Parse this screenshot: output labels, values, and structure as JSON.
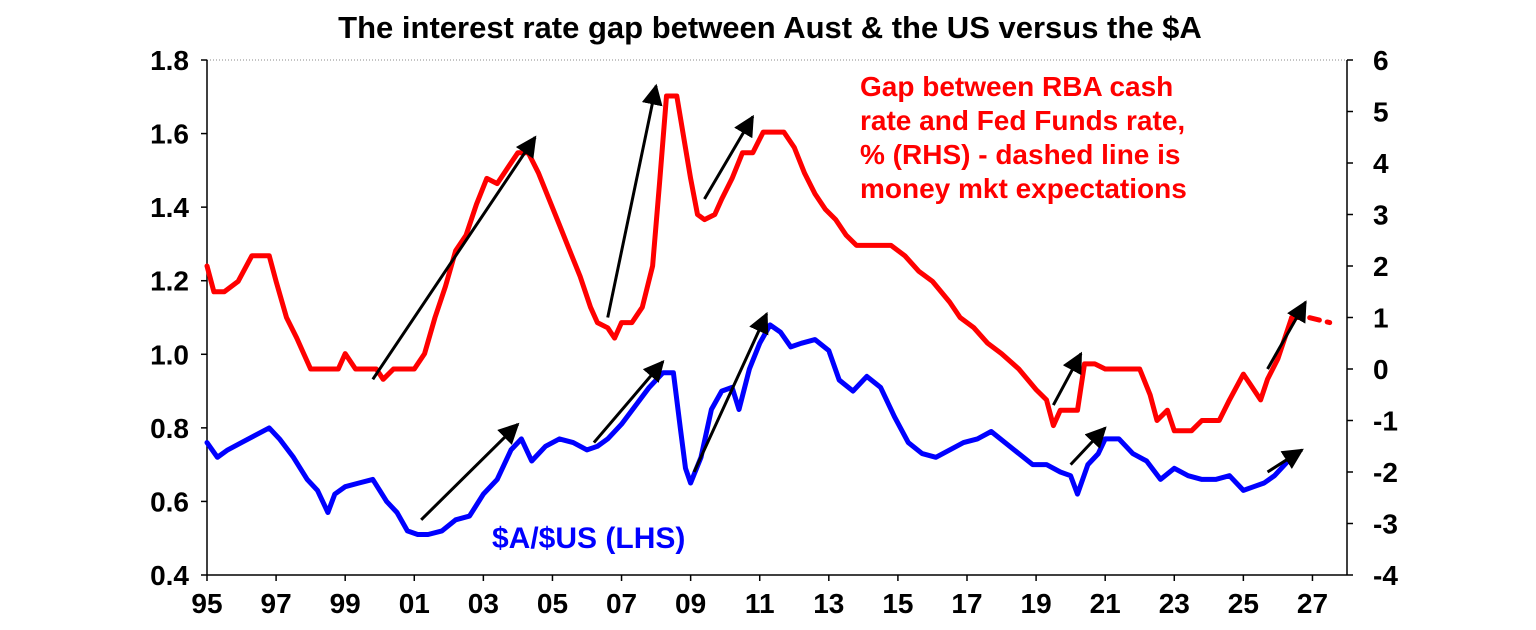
{
  "chart_data": {
    "type": "line",
    "title": "The interest rate gap between Aust & the US versus the $A",
    "x_ticks": [
      "95",
      "97",
      "99",
      "01",
      "03",
      "05",
      "07",
      "09",
      "11",
      "13",
      "15",
      "17",
      "19",
      "21",
      "23",
      "25",
      "27"
    ],
    "xlim": [
      1995,
      2028
    ],
    "left_axis": {
      "ylim": [
        0.4,
        1.8
      ],
      "ticks": [
        "1.8",
        "1.6",
        "1.4",
        "1.2",
        "1.0",
        "0.8",
        "0.6",
        "0.4"
      ]
    },
    "right_axis": {
      "ylim": [
        -4,
        6
      ],
      "ticks": [
        "6",
        "5",
        "4",
        "3",
        "2",
        "1",
        "0",
        "-1",
        "-2",
        "-3",
        "-4"
      ]
    },
    "annotations": {
      "gap": [
        "Gap between RBA cash",
        "rate and Fed Funds rate,",
        "% (RHS) - dashed line is",
        "money mkt expectations"
      ],
      "aud": "$A/$US (LHS)"
    },
    "colors": {
      "gap": "#ff0000",
      "aud": "#0000ff",
      "arrow": "#000000"
    },
    "series": [
      {
        "key": "gap",
        "axis": "right",
        "x": [
          1995.0,
          1995.2,
          1995.5,
          1995.9,
          1996.3,
          1996.8,
          1997.0,
          1997.3,
          1997.6,
          1997.8,
          1998.0,
          1998.4,
          1998.8,
          1999.0,
          1999.3,
          1999.6,
          1999.9,
          2000.1,
          2000.4,
          2000.7,
          2001.0,
          2001.3,
          2001.6,
          2001.9,
          2002.2,
          2002.5,
          2002.8,
          2003.1,
          2003.4,
          2003.7,
          2004.0,
          2004.3,
          2004.6,
          2004.9,
          2005.2,
          2005.5,
          2005.8,
          2006.1,
          2006.3,
          2006.6,
          2006.8,
          2007.0,
          2007.3,
          2007.6,
          2007.9,
          2008.1,
          2008.3,
          2008.6,
          2008.8,
          2009.0,
          2009.2,
          2009.4,
          2009.7,
          2009.9,
          2010.2,
          2010.5,
          2010.8,
          2011.1,
          2011.4,
          2011.7,
          2012.0,
          2012.3,
          2012.6,
          2012.9,
          2013.2,
          2013.5,
          2013.8,
          2014.1,
          2014.4,
          2014.8,
          2015.2,
          2015.6,
          2016.0,
          2016.5,
          2016.8,
          2017.2,
          2017.6,
          2018.0,
          2018.5,
          2019.0,
          2019.3,
          2019.5,
          2019.7,
          2020.0,
          2020.2,
          2020.4,
          2020.7,
          2021.0,
          2021.4,
          2021.7,
          2022.0,
          2022.3,
          2022.5,
          2022.8,
          2023.0,
          2023.2,
          2023.5,
          2023.8,
          2024.0,
          2024.3,
          2024.6,
          2025.0,
          2025.2,
          2025.5,
          2025.7,
          2026.0,
          2026.2,
          2026.4
        ],
        "y": [
          2.0,
          1.5,
          1.5,
          1.7,
          2.2,
          2.2,
          1.7,
          1.0,
          0.6,
          0.3,
          0.0,
          0.0,
          0.0,
          0.3,
          0.0,
          0.0,
          0.0,
          -0.2,
          0.0,
          0.0,
          0.0,
          0.3,
          1.0,
          1.6,
          2.3,
          2.6,
          3.2,
          3.7,
          3.6,
          3.9,
          4.2,
          4.2,
          3.8,
          3.3,
          2.8,
          2.3,
          1.8,
          1.2,
          0.9,
          0.8,
          0.6,
          0.9,
          0.9,
          1.2,
          2.0,
          3.6,
          5.3,
          5.3,
          4.5,
          3.7,
          3.0,
          2.9,
          3.0,
          3.3,
          3.7,
          4.2,
          4.2,
          4.6,
          4.6,
          4.6,
          4.3,
          3.8,
          3.4,
          3.1,
          2.9,
          2.6,
          2.4,
          2.4,
          2.4,
          2.4,
          2.2,
          1.9,
          1.7,
          1.3,
          1.0,
          0.8,
          0.5,
          0.3,
          0.0,
          -0.4,
          -0.6,
          -1.1,
          -0.8,
          -0.8,
          -0.8,
          0.1,
          0.1,
          0.0,
          0.0,
          0.0,
          0.0,
          -0.5,
          -1.0,
          -0.8,
          -1.2,
          -1.2,
          -1.2,
          -1.0,
          -1.0,
          -1.0,
          -0.6,
          -0.1,
          -0.3,
          -0.6,
          -0.2,
          0.2,
          0.6,
          1.0
        ]
      },
      {
        "key": "gap_expected",
        "axis": "right",
        "dashed": true,
        "x": [
          2026.4,
          2026.6,
          2026.9,
          2027.2,
          2027.5
        ],
        "y": [
          1.0,
          1.0,
          1.0,
          0.95,
          0.9
        ]
      },
      {
        "key": "aud",
        "axis": "left",
        "x": [
          1995.0,
          1995.3,
          1995.6,
          1996.0,
          1996.4,
          1996.8,
          1997.1,
          1997.5,
          1997.9,
          1998.2,
          1998.5,
          1998.7,
          1999.0,
          1999.4,
          1999.8,
          2000.2,
          2000.5,
          2000.8,
          2001.1,
          2001.4,
          2001.8,
          2002.2,
          2002.6,
          2003.0,
          2003.4,
          2003.8,
          2004.1,
          2004.4,
          2004.8,
          2005.2,
          2005.6,
          2006.0,
          2006.3,
          2006.6,
          2007.0,
          2007.4,
          2007.8,
          2008.2,
          2008.5,
          2008.7,
          2008.85,
          2009.0,
          2009.3,
          2009.6,
          2009.9,
          2010.2,
          2010.4,
          2010.7,
          2011.0,
          2011.3,
          2011.6,
          2011.9,
          2012.2,
          2012.6,
          2013.0,
          2013.3,
          2013.7,
          2014.1,
          2014.5,
          2014.9,
          2015.3,
          2015.7,
          2016.1,
          2016.5,
          2016.9,
          2017.3,
          2017.7,
          2018.1,
          2018.5,
          2018.9,
          2019.3,
          2019.7,
          2020.0,
          2020.2,
          2020.5,
          2020.8,
          2021.0,
          2021.4,
          2021.8,
          2022.2,
          2022.6,
          2023.0,
          2023.4,
          2023.8,
          2024.2,
          2024.6,
          2025.0,
          2025.3,
          2025.6,
          2025.9,
          2026.2,
          2026.4
        ],
        "y": [
          0.76,
          0.72,
          0.74,
          0.76,
          0.78,
          0.8,
          0.77,
          0.72,
          0.66,
          0.63,
          0.57,
          0.62,
          0.64,
          0.65,
          0.66,
          0.6,
          0.57,
          0.52,
          0.51,
          0.51,
          0.52,
          0.55,
          0.56,
          0.62,
          0.66,
          0.74,
          0.77,
          0.71,
          0.75,
          0.77,
          0.76,
          0.74,
          0.75,
          0.77,
          0.81,
          0.86,
          0.91,
          0.95,
          0.95,
          0.8,
          0.69,
          0.65,
          0.72,
          0.85,
          0.9,
          0.91,
          0.85,
          0.96,
          1.03,
          1.08,
          1.06,
          1.02,
          1.03,
          1.04,
          1.01,
          0.93,
          0.9,
          0.94,
          0.91,
          0.83,
          0.76,
          0.73,
          0.72,
          0.74,
          0.76,
          0.77,
          0.79,
          0.76,
          0.73,
          0.7,
          0.7,
          0.68,
          0.67,
          0.62,
          0.7,
          0.73,
          0.77,
          0.77,
          0.73,
          0.71,
          0.66,
          0.69,
          0.67,
          0.66,
          0.66,
          0.67,
          0.63,
          0.64,
          0.65,
          0.67,
          0.7,
          0.72
        ]
      }
    ],
    "arrows": [
      {
        "axis": "right",
        "from": [
          1999.8,
          -0.2
        ],
        "to": [
          2004.5,
          4.5
        ]
      },
      {
        "axis": "right",
        "from": [
          2006.6,
          1.0
        ],
        "to": [
          2008.0,
          5.5
        ]
      },
      {
        "axis": "right",
        "from": [
          2009.4,
          3.3
        ],
        "to": [
          2010.8,
          4.9
        ]
      },
      {
        "axis": "right",
        "from": [
          2019.5,
          -0.7
        ],
        "to": [
          2020.3,
          0.3
        ]
      },
      {
        "axis": "right",
        "from": [
          2025.7,
          0.0
        ],
        "to": [
          2026.8,
          1.3
        ]
      },
      {
        "axis": "left",
        "from": [
          2001.2,
          0.55
        ],
        "to": [
          2004.0,
          0.81
        ]
      },
      {
        "axis": "left",
        "from": [
          2006.2,
          0.76
        ],
        "to": [
          2008.2,
          0.98
        ]
      },
      {
        "axis": "left",
        "from": [
          2009.1,
          0.68
        ],
        "to": [
          2011.2,
          1.11
        ]
      },
      {
        "axis": "left",
        "from": [
          2020.0,
          0.7
        ],
        "to": [
          2021.0,
          0.8
        ]
      },
      {
        "axis": "left",
        "from": [
          2025.7,
          0.68
        ],
        "to": [
          2026.7,
          0.74
        ]
      }
    ]
  }
}
